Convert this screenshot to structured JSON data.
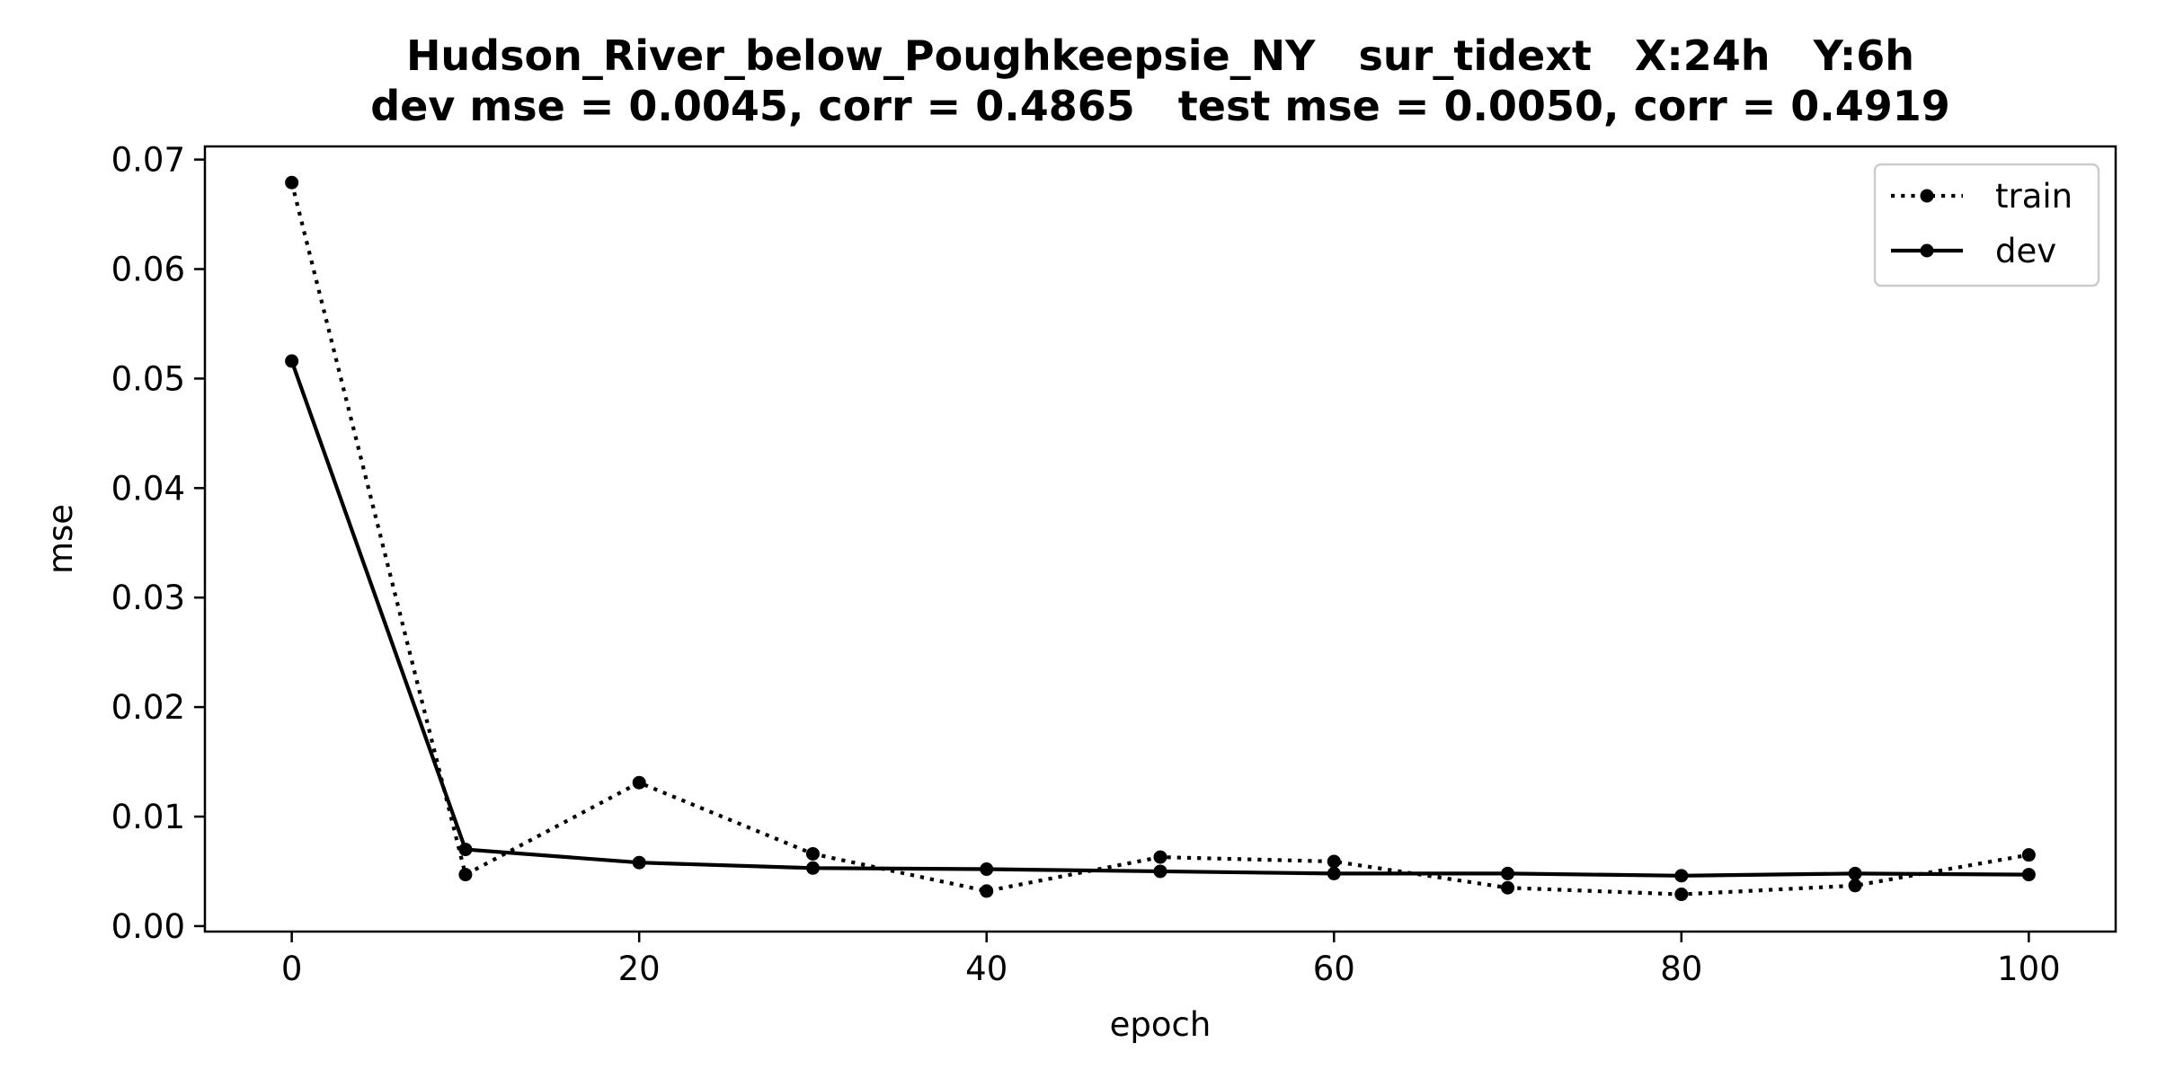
{
  "chart_data": {
    "type": "line",
    "title": "Hudson_River_below_Poughkeepsie_NY   sur_tidext   X:24h   Y:6h",
    "subtitle": "dev mse = 0.0045, corr = 0.4865   test mse = 0.0050, corr = 0.4919",
    "xlabel": "epoch",
    "ylabel": "mse",
    "xlim": [
      -5,
      105
    ],
    "ylim": [
      -0.0005,
      0.0712
    ],
    "x_ticks": [
      0,
      20,
      40,
      60,
      80,
      100
    ],
    "x_tick_labels": [
      "0",
      "20",
      "40",
      "60",
      "80",
      "100"
    ],
    "y_ticks": [
      0.0,
      0.01,
      0.02,
      0.03,
      0.04,
      0.05,
      0.06,
      0.07
    ],
    "y_tick_labels": [
      "0.00",
      "0.01",
      "0.02",
      "0.03",
      "0.04",
      "0.05",
      "0.06",
      "0.07"
    ],
    "grid": false,
    "legend_position": "top-right",
    "x": [
      0,
      10,
      20,
      30,
      40,
      50,
      60,
      70,
      80,
      90,
      100
    ],
    "series": [
      {
        "name": "train",
        "line_style": "dotted",
        "color": "#000000",
        "values": [
          0.0679,
          0.0047,
          0.0131,
          0.0066,
          0.0032,
          0.0063,
          0.0059,
          0.0035,
          0.0029,
          0.0037,
          0.0065
        ]
      },
      {
        "name": "dev",
        "line_style": "solid",
        "color": "#000000",
        "values": [
          0.0516,
          0.007,
          0.0058,
          0.0053,
          0.0052,
          0.005,
          0.0048,
          0.0048,
          0.0046,
          0.0048,
          0.0047
        ]
      }
    ]
  }
}
